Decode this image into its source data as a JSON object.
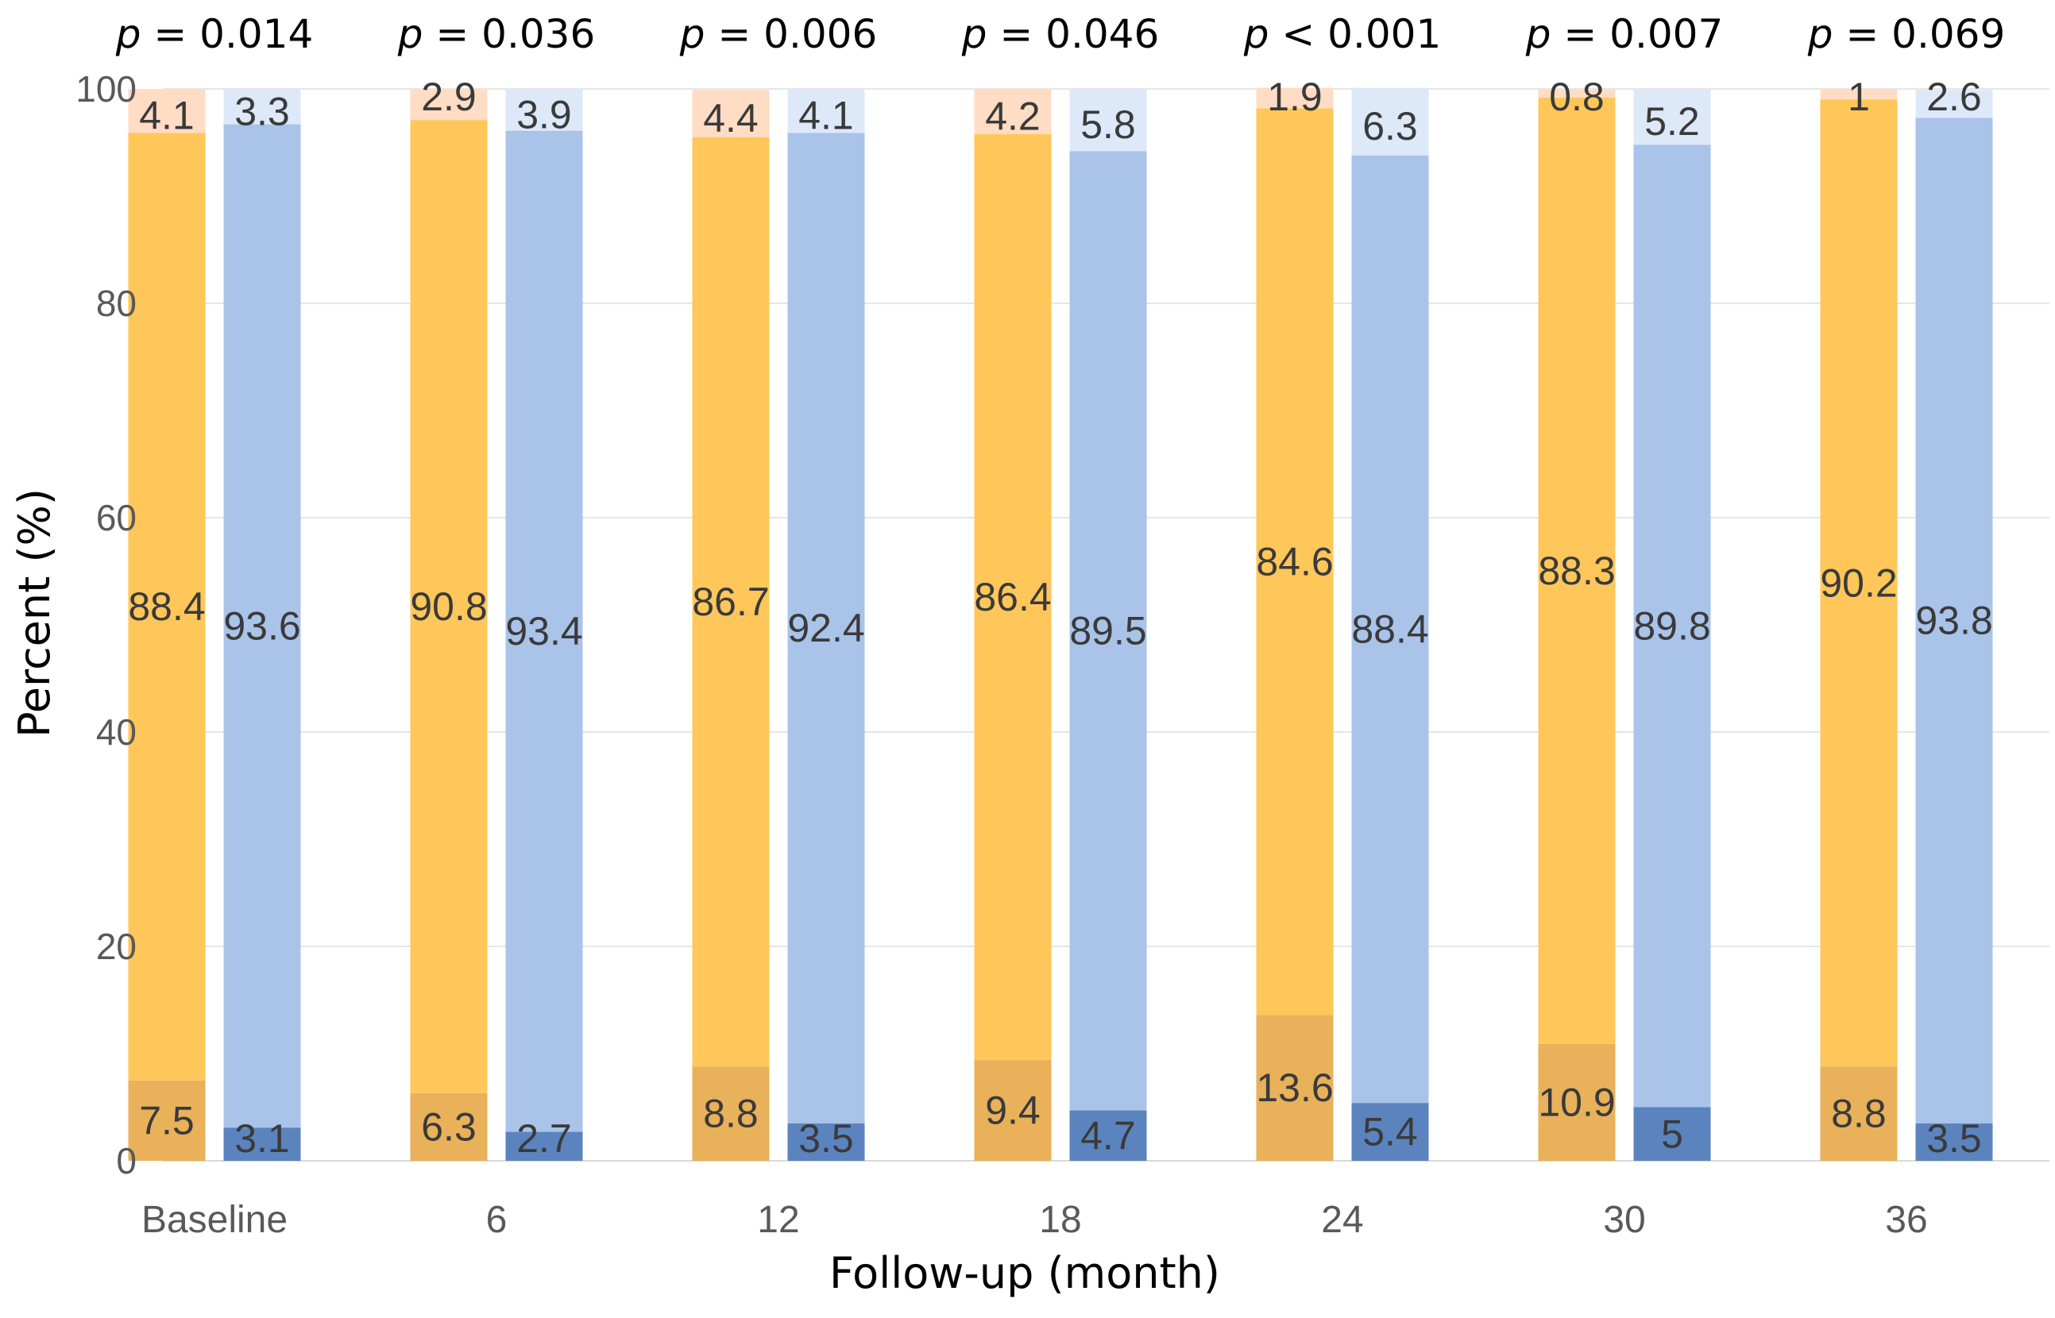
{
  "chart_data": {
    "type": "bar",
    "stacked": true,
    "grouped": true,
    "title": "",
    "xlabel": "Follow-up (month)",
    "ylabel": "Percent (%)",
    "ylim": [
      0,
      100
    ],
    "yticks": [
      0,
      20,
      40,
      60,
      80,
      100
    ],
    "grid": true,
    "categories": [
      "Baseline",
      "6",
      "12",
      "18",
      "24",
      "30",
      "36"
    ],
    "p_values": [
      {
        "prefix": "p",
        "rest": " = 0.014"
      },
      {
        "prefix": "p",
        "rest": " = 0.036"
      },
      {
        "prefix": "p",
        "rest": " = 0.006"
      },
      {
        "prefix": "p",
        "rest": " = 0.046"
      },
      {
        "prefix": "p",
        "rest": " < 0.001"
      },
      {
        "prefix": "p",
        "rest": " = 0.007"
      },
      {
        "prefix": "p",
        "rest": " = 0.069"
      }
    ],
    "groups": [
      {
        "name": "orange group",
        "colors": {
          "bottom": "#E8B15A",
          "middle": "#FFC75A",
          "top": "#FFDCC4"
        },
        "bottom": [
          7.5,
          6.3,
          8.8,
          9.4,
          13.6,
          10.9,
          8.8
        ],
        "middle": [
          88.4,
          90.8,
          86.7,
          86.4,
          84.6,
          88.3,
          90.2
        ],
        "top": [
          4.1,
          2.9,
          4.4,
          4.2,
          1.9,
          0.8,
          1
        ]
      },
      {
        "name": "blue group",
        "colors": {
          "bottom": "#5B84BE",
          "middle": "#A9C3E9",
          "top": "#DDE8F8"
        },
        "bottom": [
          3.1,
          2.7,
          3.5,
          4.7,
          5.4,
          5,
          3.5
        ],
        "middle": [
          93.6,
          93.4,
          92.4,
          89.5,
          88.4,
          89.8,
          93.8
        ],
        "top": [
          3.3,
          3.9,
          4.1,
          5.8,
          6.3,
          5.2,
          2.6
        ]
      }
    ]
  }
}
